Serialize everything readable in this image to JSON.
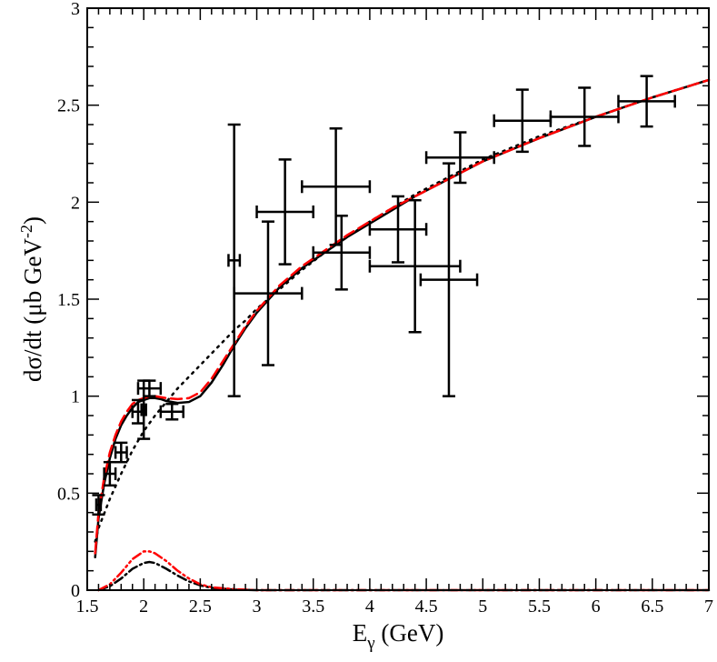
{
  "chart_data": {
    "type": "line",
    "title": "",
    "xlabel_main": "E",
    "xlabel_sub": "γ",
    "xlabel_unit": " (GeV)",
    "ylabel_main": "dσ/dt (μb GeV",
    "ylabel_sup": "-2",
    "ylabel_end": ")",
    "xlim": [
      1.5,
      7
    ],
    "ylim": [
      0,
      3
    ],
    "xticks": [
      1.5,
      2,
      2.5,
      3,
      3.5,
      4,
      4.5,
      5,
      5.5,
      6,
      6.5,
      7
    ],
    "xtick_labels": [
      "1.5",
      "2",
      "2.5",
      "3",
      "3.5",
      "4",
      "4.5",
      "5",
      "5.5",
      "6",
      "6.5",
      "7"
    ],
    "yticks": [
      0,
      0.5,
      1,
      1.5,
      2,
      2.5,
      3
    ],
    "ytick_labels": [
      "0",
      "0.5",
      "1",
      "1.5",
      "2",
      "2.5",
      "3"
    ],
    "grid": false,
    "colors": {
      "black": "#000000",
      "red": "#ff0000"
    },
    "series": [
      {
        "style": "solid-black",
        "points": [
          [
            1.57,
            0.17
          ],
          [
            1.6,
            0.37
          ],
          [
            1.65,
            0.55
          ],
          [
            1.7,
            0.68
          ],
          [
            1.75,
            0.78
          ],
          [
            1.8,
            0.85
          ],
          [
            1.85,
            0.9
          ],
          [
            1.9,
            0.94
          ],
          [
            1.95,
            0.97
          ],
          [
            2.0,
            0.98
          ],
          [
            2.05,
            0.99
          ],
          [
            2.1,
            0.99
          ],
          [
            2.15,
            0.985
          ],
          [
            2.2,
            0.975
          ],
          [
            2.3,
            0.965
          ],
          [
            2.4,
            0.97
          ],
          [
            2.5,
            1.0
          ],
          [
            2.6,
            1.07
          ],
          [
            2.7,
            1.16
          ],
          [
            2.8,
            1.26
          ],
          [
            2.9,
            1.35
          ],
          [
            3.0,
            1.43
          ],
          [
            3.2,
            1.56
          ],
          [
            3.4,
            1.66
          ],
          [
            3.6,
            1.74
          ],
          [
            3.8,
            1.82
          ],
          [
            4.0,
            1.89
          ],
          [
            4.2,
            1.96
          ],
          [
            4.4,
            2.03
          ],
          [
            4.6,
            2.09
          ],
          [
            4.8,
            2.15
          ],
          [
            5.0,
            2.21
          ],
          [
            5.5,
            2.33
          ],
          [
            6.0,
            2.44
          ],
          [
            6.5,
            2.54
          ],
          [
            7.0,
            2.63
          ]
        ]
      },
      {
        "style": "dashed-red",
        "points": [
          [
            1.57,
            0.19
          ],
          [
            1.6,
            0.4
          ],
          [
            1.65,
            0.58
          ],
          [
            1.7,
            0.71
          ],
          [
            1.75,
            0.8
          ],
          [
            1.8,
            0.87
          ],
          [
            1.85,
            0.92
          ],
          [
            1.9,
            0.96
          ],
          [
            1.95,
            0.98
          ],
          [
            2.0,
            0.99
          ],
          [
            2.05,
            1.0
          ],
          [
            2.1,
            1.0
          ],
          [
            2.15,
            0.995
          ],
          [
            2.2,
            0.99
          ],
          [
            2.3,
            0.985
          ],
          [
            2.4,
            0.99
          ],
          [
            2.5,
            1.02
          ],
          [
            2.6,
            1.09
          ],
          [
            2.7,
            1.18
          ],
          [
            2.8,
            1.27
          ],
          [
            2.9,
            1.36
          ],
          [
            3.0,
            1.44
          ],
          [
            3.2,
            1.57
          ],
          [
            3.4,
            1.67
          ],
          [
            3.6,
            1.75
          ],
          [
            3.8,
            1.83
          ],
          [
            4.0,
            1.9
          ],
          [
            4.2,
            1.97
          ],
          [
            4.4,
            2.03
          ],
          [
            4.6,
            2.09
          ],
          [
            4.8,
            2.15
          ],
          [
            5.0,
            2.21
          ],
          [
            5.5,
            2.33
          ],
          [
            6.0,
            2.44
          ],
          [
            6.5,
            2.54
          ],
          [
            7.0,
            2.63
          ]
        ]
      },
      {
        "style": "dotted-black",
        "points": [
          [
            1.57,
            0.25
          ],
          [
            1.6,
            0.32
          ],
          [
            1.7,
            0.47
          ],
          [
            1.8,
            0.6
          ],
          [
            1.9,
            0.72
          ],
          [
            2.0,
            0.82
          ],
          [
            2.1,
            0.9
          ],
          [
            2.2,
            0.97
          ],
          [
            2.3,
            1.04
          ],
          [
            2.4,
            1.1
          ],
          [
            2.5,
            1.16
          ],
          [
            2.6,
            1.22
          ],
          [
            2.7,
            1.28
          ],
          [
            2.8,
            1.34
          ],
          [
            2.9,
            1.39
          ],
          [
            3.0,
            1.45
          ],
          [
            3.2,
            1.55
          ],
          [
            3.4,
            1.65
          ],
          [
            3.6,
            1.74
          ],
          [
            3.8,
            1.82
          ],
          [
            4.0,
            1.9
          ],
          [
            4.2,
            1.97
          ],
          [
            4.4,
            2.04
          ],
          [
            4.6,
            2.1
          ],
          [
            4.8,
            2.16
          ],
          [
            5.0,
            2.22
          ],
          [
            5.5,
            2.34
          ],
          [
            6.0,
            2.44
          ],
          [
            6.5,
            2.54
          ],
          [
            7.0,
            2.63
          ]
        ]
      },
      {
        "style": "dashdot-red",
        "points": [
          [
            1.6,
            0.0
          ],
          [
            1.7,
            0.03
          ],
          [
            1.8,
            0.09
          ],
          [
            1.9,
            0.16
          ],
          [
            2.0,
            0.2
          ],
          [
            2.05,
            0.2
          ],
          [
            2.1,
            0.19
          ],
          [
            2.2,
            0.15
          ],
          [
            2.3,
            0.1
          ],
          [
            2.4,
            0.06
          ],
          [
            2.5,
            0.03
          ],
          [
            2.6,
            0.015
          ],
          [
            2.8,
            0.005
          ],
          [
            3.0,
            0.0
          ],
          [
            7.0,
            0.0
          ]
        ]
      },
      {
        "style": "dashdot-black",
        "points": [
          [
            1.6,
            0.0
          ],
          [
            1.7,
            0.02
          ],
          [
            1.8,
            0.06
          ],
          [
            1.9,
            0.11
          ],
          [
            2.0,
            0.14
          ],
          [
            2.05,
            0.145
          ],
          [
            2.1,
            0.14
          ],
          [
            2.2,
            0.11
          ],
          [
            2.3,
            0.075
          ],
          [
            2.4,
            0.045
          ],
          [
            2.5,
            0.025
          ],
          [
            2.6,
            0.012
          ],
          [
            2.8,
            0.003
          ],
          [
            3.0,
            0.0
          ],
          [
            7.0,
            0.0
          ]
        ]
      }
    ],
    "error_points": [
      {
        "x": 1.6,
        "y": 0.44,
        "xerr": 0.02,
        "yerr": 0.05
      },
      {
        "x": 1.7,
        "y": 0.6,
        "xerr": 0.05,
        "yerr": 0.06
      },
      {
        "x": 1.8,
        "y": 0.71,
        "xerr": 0.05,
        "yerr": 0.05
      },
      {
        "x": 1.95,
        "y": 0.92,
        "xerr": 0.05,
        "yerr": 0.06
      },
      {
        "x": 2.0,
        "y": 0.93,
        "xerr": 0.02,
        "yerr": 0.15
      },
      {
        "x": 2.05,
        "y": 1.04,
        "xerr": 0.1,
        "yerr": 0.04
      },
      {
        "x": 2.25,
        "y": 0.92,
        "xerr": 0.1,
        "yerr": 0.04
      },
      {
        "x": 2.8,
        "y": 1.7,
        "xerr": 0.05,
        "yerr": 0.7
      },
      {
        "x": 3.1,
        "y": 1.53,
        "xerr": 0.3,
        "yerr": 0.37
      },
      {
        "x": 3.25,
        "y": 1.95,
        "xerr": 0.25,
        "yerr": 0.27
      },
      {
        "x": 3.7,
        "y": 2.08,
        "xerr": 0.3,
        "yerr": 0.3
      },
      {
        "x": 3.75,
        "y": 1.74,
        "xerr": 0.25,
        "yerr": 0.19
      },
      {
        "x": 4.25,
        "y": 1.86,
        "xerr": 0.25,
        "yerr": 0.17
      },
      {
        "x": 4.4,
        "y": 1.67,
        "xerr": 0.4,
        "yerr": 0.34
      },
      {
        "x": 4.7,
        "y": 1.6,
        "xerr": 0.25,
        "yerr": 0.6
      },
      {
        "x": 4.8,
        "y": 2.23,
        "xerr": 0.3,
        "yerr": 0.13
      },
      {
        "x": 5.35,
        "y": 2.42,
        "xerr": 0.25,
        "yerr": 0.16
      },
      {
        "x": 5.9,
        "y": 2.44,
        "xerr": 0.3,
        "yerr": 0.15
      },
      {
        "x": 6.45,
        "y": 2.52,
        "xerr": 0.25,
        "yerr": 0.13
      }
    ]
  }
}
